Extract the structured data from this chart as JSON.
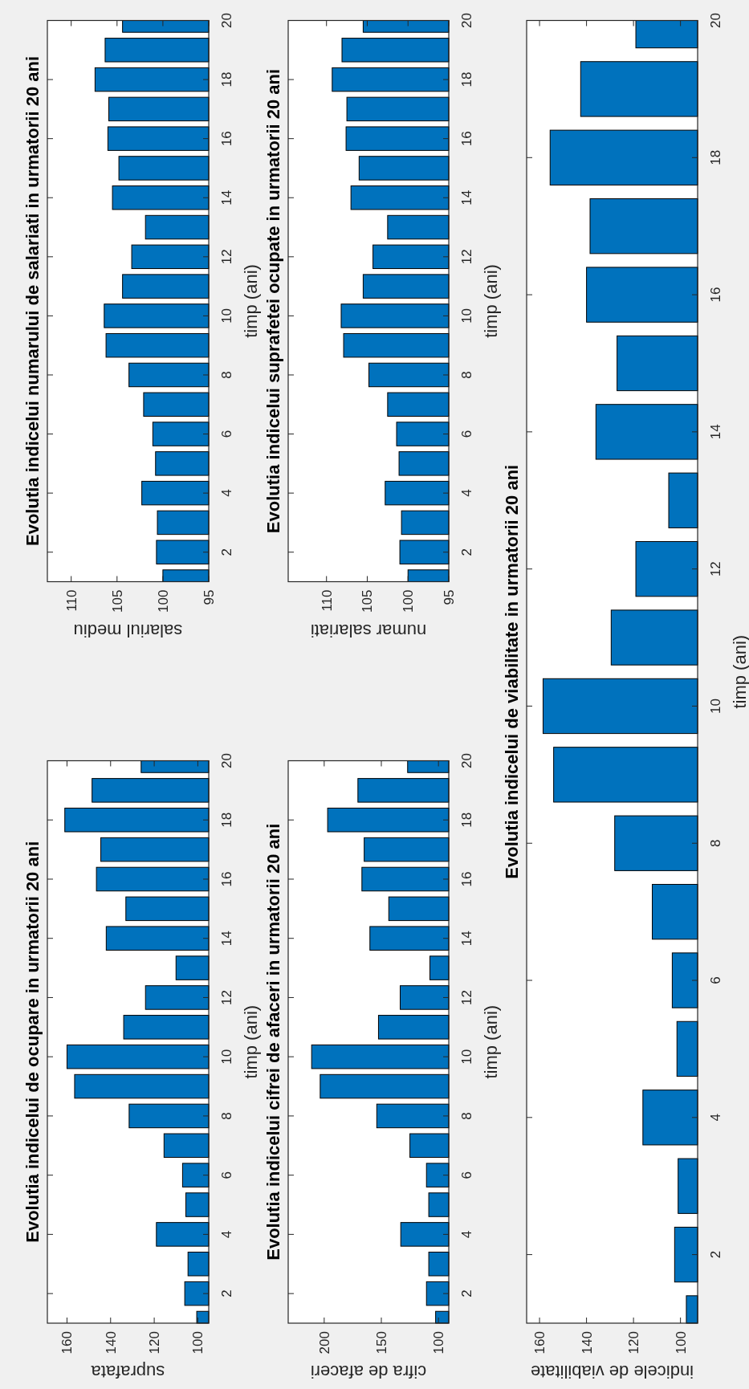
{
  "chart_data": [
    {
      "type": "bar",
      "orientation": "horizontal",
      "title": "Evolutia indicelui de ocupare in urmatorii 20 ani",
      "xlabel": "suprafata",
      "ylabel": "timp (ani)",
      "categories": [
        "20",
        null,
        "18",
        null,
        "16",
        null,
        "14",
        null,
        "12",
        null,
        "10",
        null,
        "8",
        null,
        "6",
        null,
        "4",
        null,
        "2",
        null
      ],
      "values": [
        126,
        148.5,
        161,
        144.5,
        146.5,
        133,
        142,
        110,
        124,
        134,
        160,
        156.5,
        131.5,
        115.5,
        107,
        105.5,
        119,
        104.5,
        106,
        100.5
      ],
      "color": "#0072bd",
      "xlim": [
        169,
        95
      ],
      "xticks": [
        100,
        120,
        140,
        160
      ]
    },
    {
      "type": "bar",
      "orientation": "horizontal",
      "title": "Evolutia indicelui numarului de salariati in urmatorii 20 ani",
      "xlabel": "salariul mediu",
      "ylabel": "timp (ani)",
      "categories": [
        "20",
        null,
        "18",
        null,
        "16",
        null,
        "14",
        null,
        "12",
        null,
        "10",
        null,
        "8",
        null,
        "6",
        null,
        "4",
        null,
        "2",
        null
      ],
      "values": [
        104.4,
        106.3,
        107.4,
        105.9,
        106,
        104.8,
        105.5,
        101.9,
        103.4,
        104.4,
        106.4,
        106.2,
        103.7,
        102.1,
        101.1,
        100.8,
        102.3,
        100.6,
        100.7,
        100
      ],
      "color": "#0072bd",
      "xlim": [
        112.6,
        95
      ],
      "xticks": [
        95,
        100,
        105,
        110
      ]
    },
    {
      "type": "bar",
      "orientation": "horizontal",
      "title": "Evolutia indicelui cifrei de afaceri in urmatorii 20 ani",
      "xlabel": "cifra de afaceri",
      "ylabel": "timp (ani)",
      "categories": [
        "20",
        null,
        "18",
        null,
        "16",
        null,
        "14",
        null,
        "12",
        null,
        "10",
        null,
        "8",
        null,
        "6",
        null,
        "4",
        null,
        "2",
        null
      ],
      "values": [
        127,
        170.5,
        197,
        165,
        167,
        143.5,
        160,
        107.5,
        133.5,
        152.5,
        211,
        203.5,
        154,
        125,
        110.5,
        108.5,
        133,
        108.5,
        110.5,
        102.5
      ],
      "color": "#0072bd",
      "xlim": [
        231.5,
        91
      ],
      "xticks": [
        100,
        150,
        200
      ]
    },
    {
      "type": "bar",
      "orientation": "horizontal",
      "title": "Evolutia indicelui suprafetei ocupate in urmatorii 20 ani",
      "xlabel": "numar salariati",
      "ylabel": "timp (ani)",
      "categories": [
        "20",
        null,
        "18",
        null,
        "16",
        null,
        "14",
        null,
        "12",
        null,
        "10",
        null,
        "8",
        null,
        "6",
        null,
        "4",
        null,
        "2",
        null
      ],
      "values": [
        105.5,
        108.1,
        109.3,
        107.5,
        107.6,
        106,
        107,
        102.5,
        104.3,
        105.5,
        108.2,
        107.9,
        104.8,
        102.5,
        101.4,
        101.1,
        102.8,
        100.8,
        101,
        100
      ],
      "color": "#0072bd",
      "xlim": [
        114.7,
        95
      ],
      "xticks": [
        95,
        100,
        105,
        110
      ]
    },
    {
      "type": "bar",
      "orientation": "horizontal",
      "title": "Evolutia indicelui de viabilitate in urmatorii 20 ani",
      "xlabel": "indicele de viabilitate",
      "ylabel": "timp (ani)",
      "categories": [
        "20",
        null,
        "18",
        null,
        "16",
        null,
        "14",
        null,
        "12",
        null,
        "10",
        null,
        "8",
        null,
        "6",
        null,
        "4",
        null,
        "2",
        null
      ],
      "values": [
        119,
        142.5,
        155.5,
        138.5,
        140,
        127,
        136,
        105,
        119,
        129.5,
        158.5,
        154,
        128,
        112,
        103.5,
        101.5,
        116,
        101,
        102.5,
        97.5
      ],
      "color": "#0072bd",
      "xlim": [
        165.5,
        92.7
      ],
      "xticks": [
        100,
        120,
        140,
        160
      ]
    }
  ]
}
